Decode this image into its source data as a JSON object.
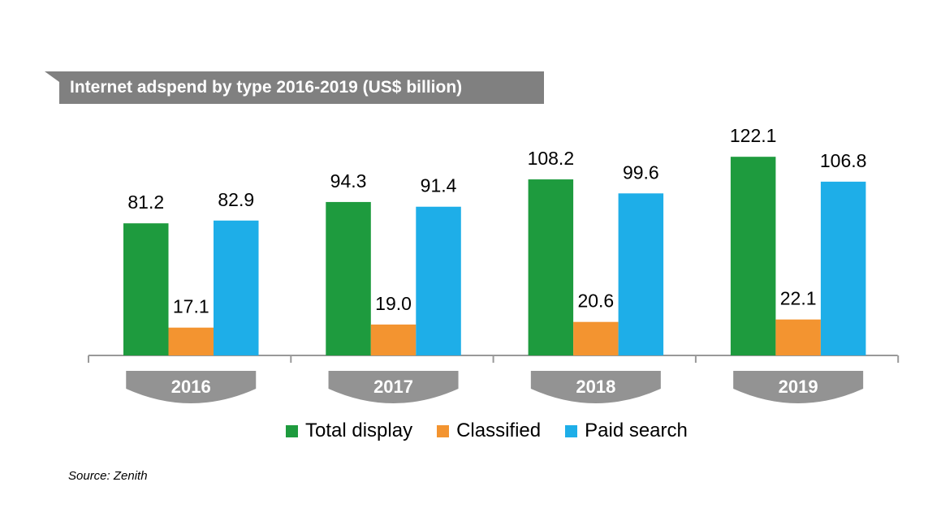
{
  "chart_data": {
    "type": "bar",
    "title": "Internet adspend by type 2016-2019 (US$ billion)",
    "categories": [
      "2016",
      "2017",
      "2018",
      "2019"
    ],
    "series": [
      {
        "name": "Total display",
        "color": "#1e9b3e",
        "values": [
          81.2,
          94.3,
          108.2,
          122.1
        ]
      },
      {
        "name": "Classified",
        "color": "#f39430",
        "values": [
          17.1,
          19.0,
          20.6,
          22.1
        ]
      },
      {
        "name": "Paid search",
        "color": "#1eaee8",
        "values": [
          82.9,
          91.4,
          99.6,
          106.8
        ]
      }
    ],
    "ylim": [
      0,
      130
    ],
    "legend_position": "bottom",
    "grid": false,
    "source": "Source: Zenith"
  }
}
